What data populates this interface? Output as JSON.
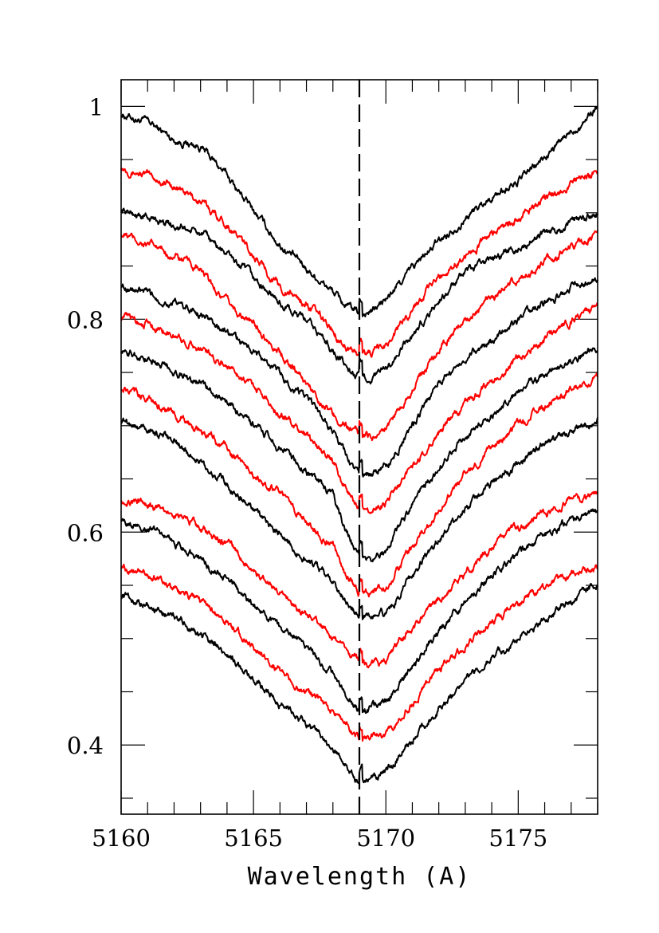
{
  "chart_data": {
    "type": "line",
    "title": "",
    "xlabel": "Wavelength (A)",
    "ylabel": "",
    "xlim": [
      5160,
      5178
    ],
    "ylim": [
      0.335,
      1.025
    ],
    "x_ticks": [
      5160,
      5165,
      5170,
      5175
    ],
    "x_tick_labels": [
      "5160",
      "5165",
      "5170",
      "5175"
    ],
    "y_ticks": [
      0.4,
      0.6,
      0.8,
      1.0
    ],
    "y_tick_labels": [
      "0.4",
      "0.6",
      "0.8",
      "1"
    ],
    "x_minor_step": 1,
    "y_minor_step": 0.05,
    "reference_line_x": 5169.0,
    "grid": false,
    "colors": {
      "black": "#000000",
      "red": "#ff0000"
    },
    "series": [
      {
        "color": "black",
        "x": [
          5160,
          5161,
          5162,
          5163,
          5164,
          5165,
          5166,
          5167,
          5168,
          5168.5,
          5169,
          5169.5,
          5170,
          5171,
          5172,
          5173,
          5174,
          5175,
          5176,
          5177,
          5178
        ],
        "y": [
          0.993,
          0.985,
          0.969,
          0.962,
          0.935,
          0.902,
          0.87,
          0.848,
          0.826,
          0.812,
          0.805,
          0.808,
          0.818,
          0.848,
          0.873,
          0.895,
          0.915,
          0.929,
          0.952,
          0.976,
          1.0
        ]
      },
      {
        "color": "red",
        "x": [
          5160,
          5161,
          5162,
          5163,
          5164,
          5165,
          5166,
          5167,
          5168,
          5168.5,
          5169,
          5169.5,
          5170,
          5171,
          5172,
          5173,
          5174,
          5175,
          5176,
          5177,
          5178
        ],
        "y": [
          0.944,
          0.935,
          0.925,
          0.91,
          0.89,
          0.86,
          0.83,
          0.815,
          0.79,
          0.775,
          0.766,
          0.768,
          0.776,
          0.81,
          0.84,
          0.86,
          0.88,
          0.894,
          0.912,
          0.928,
          0.94
        ]
      },
      {
        "color": "black",
        "x": [
          5160,
          5161,
          5162,
          5163,
          5164,
          5165,
          5166,
          5167,
          5168,
          5168.5,
          5169,
          5169.5,
          5170,
          5171,
          5172,
          5173,
          5174,
          5175,
          5176,
          5177,
          5178
        ],
        "y": [
          0.903,
          0.895,
          0.889,
          0.88,
          0.862,
          0.838,
          0.815,
          0.798,
          0.772,
          0.755,
          0.744,
          0.745,
          0.752,
          0.784,
          0.818,
          0.842,
          0.858,
          0.868,
          0.88,
          0.891,
          0.898
        ]
      },
      {
        "color": "red",
        "x": [
          5160,
          5161,
          5162,
          5163,
          5164,
          5165,
          5166,
          5167,
          5168,
          5168.5,
          5169,
          5169.5,
          5170,
          5171,
          5172,
          5173,
          5174,
          5175,
          5176,
          5177,
          5178
        ],
        "y": [
          0.88,
          0.87,
          0.86,
          0.845,
          0.815,
          0.795,
          0.77,
          0.74,
          0.71,
          0.7,
          0.69,
          0.69,
          0.698,
          0.735,
          0.772,
          0.8,
          0.82,
          0.838,
          0.852,
          0.868,
          0.88
        ]
      },
      {
        "color": "black",
        "x": [
          5160,
          5161,
          5162,
          5163,
          5164,
          5165,
          5166,
          5167,
          5168,
          5168.5,
          5169,
          5169.5,
          5170,
          5171,
          5172,
          5173,
          5174,
          5175,
          5176,
          5177,
          5178
        ],
        "y": [
          0.833,
          0.823,
          0.815,
          0.805,
          0.788,
          0.77,
          0.748,
          0.725,
          0.696,
          0.67,
          0.653,
          0.654,
          0.66,
          0.7,
          0.74,
          0.765,
          0.782,
          0.8,
          0.815,
          0.83,
          0.842
        ]
      },
      {
        "color": "red",
        "x": [
          5160,
          5161,
          5162,
          5163,
          5164,
          5165,
          5166,
          5167,
          5168,
          5168.5,
          5169,
          5169.5,
          5170,
          5171,
          5172,
          5173,
          5174,
          5175,
          5176,
          5177,
          5178
        ],
        "y": [
          0.803,
          0.797,
          0.785,
          0.773,
          0.757,
          0.738,
          0.712,
          0.69,
          0.667,
          0.64,
          0.62,
          0.622,
          0.628,
          0.66,
          0.695,
          0.72,
          0.74,
          0.762,
          0.782,
          0.798,
          0.812
        ]
      },
      {
        "color": "black",
        "x": [
          5160,
          5161,
          5162,
          5163,
          5164,
          5165,
          5166,
          5167,
          5168,
          5168.5,
          5169,
          5169.5,
          5170,
          5171,
          5172,
          5173,
          5174,
          5175,
          5176,
          5177,
          5178
        ],
        "y": [
          0.77,
          0.763,
          0.752,
          0.74,
          0.722,
          0.7,
          0.68,
          0.658,
          0.634,
          0.6,
          0.575,
          0.574,
          0.582,
          0.626,
          0.662,
          0.69,
          0.712,
          0.732,
          0.748,
          0.762,
          0.775
        ]
      },
      {
        "color": "red",
        "x": [
          5160,
          5161,
          5162,
          5163,
          5164,
          5165,
          5166,
          5167,
          5168,
          5168.5,
          5169,
          5169.5,
          5170,
          5171,
          5172,
          5173,
          5174,
          5175,
          5176,
          5177,
          5178
        ],
        "y": [
          0.735,
          0.725,
          0.71,
          0.695,
          0.678,
          0.655,
          0.635,
          0.61,
          0.585,
          0.56,
          0.544,
          0.545,
          0.55,
          0.585,
          0.62,
          0.655,
          0.68,
          0.7,
          0.718,
          0.733,
          0.745
        ]
      },
      {
        "color": "black",
        "x": [
          5160,
          5161,
          5162,
          5163,
          5164,
          5165,
          5166,
          5167,
          5168,
          5168.5,
          5169,
          5169.5,
          5170,
          5171,
          5172,
          5173,
          5174,
          5175,
          5176,
          5177,
          5178
        ],
        "y": [
          0.705,
          0.697,
          0.685,
          0.665,
          0.645,
          0.62,
          0.598,
          0.575,
          0.552,
          0.535,
          0.522,
          0.52,
          0.522,
          0.56,
          0.595,
          0.622,
          0.645,
          0.665,
          0.683,
          0.697,
          0.708
        ]
      },
      {
        "color": "red",
        "x": [
          5160,
          5161,
          5162,
          5163,
          5164,
          5165,
          5166,
          5167,
          5168,
          5168.5,
          5169,
          5169.5,
          5170,
          5171,
          5172,
          5173,
          5174,
          5175,
          5176,
          5177,
          5178
        ],
        "y": [
          0.632,
          0.625,
          0.618,
          0.603,
          0.59,
          0.565,
          0.543,
          0.522,
          0.5,
          0.486,
          0.475,
          0.477,
          0.48,
          0.51,
          0.538,
          0.562,
          0.585,
          0.603,
          0.618,
          0.63,
          0.637
        ]
      },
      {
        "color": "black",
        "x": [
          5160,
          5161,
          5162,
          5163,
          5164,
          5165,
          5166,
          5167,
          5168,
          5168.5,
          5169,
          5169.5,
          5170,
          5171,
          5172,
          5173,
          5174,
          5175,
          5176,
          5177,
          5178
        ],
        "y": [
          0.612,
          0.602,
          0.59,
          0.575,
          0.555,
          0.532,
          0.51,
          0.49,
          0.466,
          0.45,
          0.432,
          0.435,
          0.442,
          0.475,
          0.508,
          0.535,
          0.56,
          0.58,
          0.598,
          0.61,
          0.62
        ]
      },
      {
        "color": "red",
        "x": [
          5160,
          5161,
          5162,
          5163,
          5164,
          5165,
          5166,
          5167,
          5168,
          5168.5,
          5169,
          5169.5,
          5170,
          5171,
          5172,
          5173,
          5174,
          5175,
          5176,
          5177,
          5178
        ],
        "y": [
          0.568,
          0.56,
          0.548,
          0.535,
          0.515,
          0.492,
          0.47,
          0.45,
          0.43,
          0.418,
          0.405,
          0.407,
          0.412,
          0.44,
          0.47,
          0.495,
          0.515,
          0.532,
          0.548,
          0.56,
          0.568
        ]
      },
      {
        "color": "black",
        "x": [
          5160,
          5161,
          5162,
          5163,
          5164,
          5165,
          5166,
          5167,
          5168,
          5168.5,
          5169,
          5169.5,
          5170,
          5171,
          5172,
          5173,
          5174,
          5175,
          5176,
          5177,
          5178
        ],
        "y": [
          0.54,
          0.532,
          0.52,
          0.505,
          0.485,
          0.462,
          0.44,
          0.42,
          0.398,
          0.38,
          0.365,
          0.368,
          0.375,
          0.405,
          0.435,
          0.46,
          0.482,
          0.5,
          0.518,
          0.535,
          0.55
        ]
      }
    ]
  }
}
